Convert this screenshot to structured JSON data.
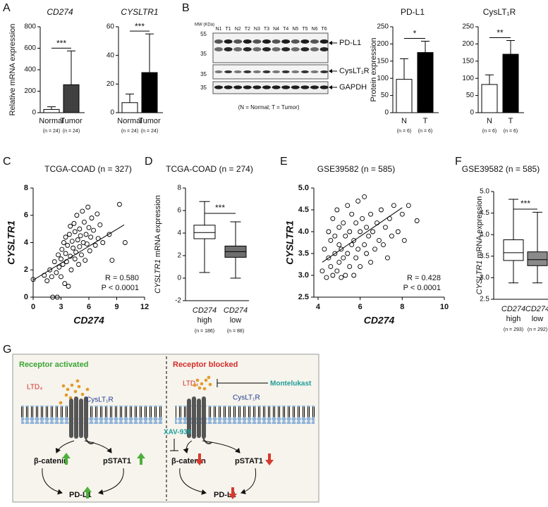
{
  "panel_labels": [
    "A",
    "B",
    "C",
    "D",
    "E",
    "F",
    "G"
  ],
  "blot": {
    "mw_unit": "MW (KDa)",
    "lanes": [
      "N1",
      "T1",
      "N2",
      "T2",
      "N3",
      "T3",
      "N4",
      "T4",
      "N5",
      "T5",
      "N6",
      "T6"
    ],
    "mw_markers": [
      55,
      35,
      35,
      35
    ],
    "proteins": [
      "PD-L1",
      "CysLT₁R",
      "GAPDH"
    ],
    "caption": "(N = Normal; T = Tumor)"
  },
  "chart_data": [
    {
      "type": "bar",
      "title": "CD274",
      "ylabel": "Relative mRNA expression",
      "categories": [
        "Normal",
        "Tumor"
      ],
      "n_labels": [
        "(n = 24)",
        "(n = 24)"
      ],
      "values": [
        30,
        260
      ],
      "errors": [
        25,
        315
      ],
      "colors": [
        "#ffffff",
        "#404040"
      ],
      "ylim": [
        0,
        800
      ],
      "yticks": [
        0,
        200,
        400,
        600,
        800
      ],
      "significance": "***"
    },
    {
      "type": "bar",
      "title": "CYSLTR1",
      "categories": [
        "Normal",
        "Tumor"
      ],
      "n_labels": [
        "(n = 24)",
        "(n = 24)"
      ],
      "values": [
        7,
        28
      ],
      "errors": [
        6,
        27
      ],
      "colors": [
        "#ffffff",
        "#000000"
      ],
      "ylim": [
        0,
        60
      ],
      "yticks": [
        0,
        20,
        40,
        60
      ],
      "significance": "***"
    },
    {
      "type": "bar",
      "title": "PD-L1",
      "ylabel": "Protein expression",
      "categories": [
        "N",
        "T"
      ],
      "n_labels": [
        "(n = 6)",
        "(n = 6)"
      ],
      "values": [
        97,
        175
      ],
      "errors": [
        60,
        33
      ],
      "colors": [
        "#ffffff",
        "#000000"
      ],
      "ylim": [
        0,
        250
      ],
      "yticks": [
        0,
        50,
        100,
        150,
        200,
        250
      ],
      "significance": "*"
    },
    {
      "type": "bar",
      "title": "CysLT₁R",
      "categories": [
        "N",
        "T"
      ],
      "n_labels": [
        "(n = 6)",
        "(n = 6)"
      ],
      "values": [
        82,
        170
      ],
      "errors": [
        28,
        40
      ],
      "colors": [
        "#ffffff",
        "#000000"
      ],
      "ylim": [
        0,
        250
      ],
      "yticks": [
        0,
        50,
        100,
        150,
        200,
        250
      ],
      "significance": "**"
    },
    {
      "type": "scatter",
      "title": "TCGA-COAD (n = 327)",
      "xlabel": "CD274",
      "ylabel": "CYSLTR1",
      "x": [
        0,
        1.2,
        1.5,
        1.8,
        2.0,
        2.1,
        2.3,
        2.5,
        2.6,
        2.7,
        2.8,
        3.0,
        3.0,
        3.1,
        3.2,
        3.3,
        3.4,
        3.5,
        3.5,
        3.6,
        3.7,
        3.8,
        3.9,
        4.0,
        4.0,
        4.1,
        4.2,
        4.3,
        4.4,
        4.5,
        4.5,
        4.6,
        4.7,
        4.8,
        4.9,
        5.0,
        5.0,
        5.1,
        5.2,
        5.3,
        5.4,
        5.5,
        5.6,
        5.7,
        5.8,
        5.9,
        6.0,
        6.1,
        6.2,
        6.3,
        6.5,
        6.7,
        6.9,
        7.0,
        7.2,
        7.5,
        8.2,
        8.5,
        9.3,
        9.9
      ],
      "y": [
        1.3,
        1.6,
        1.2,
        2.0,
        1.5,
        0,
        2.6,
        1.8,
        0,
        3.1,
        2.2,
        2.8,
        1.5,
        3.5,
        2.4,
        4.0,
        1.0,
        3.2,
        4.4,
        2.6,
        3.8,
        0.8,
        4.6,
        3.0,
        5.2,
        2.0,
        4.1,
        3.6,
        5.4,
        2.8,
        4.8,
        3.3,
        6.0,
        4.2,
        2.4,
        3.7,
        5.0,
        4.5,
        3.1,
        6.3,
        4.0,
        5.5,
        2.7,
        4.6,
        3.9,
        6.6,
        5.1,
        3.4,
        4.4,
        5.8,
        4.9,
        3.8,
        6.1,
        4.3,
        5.3,
        4.0,
        4.6,
        2.7,
        6.8,
        4.0
      ],
      "fit": {
        "x": [
          0,
          9.8
        ],
        "y": [
          1.25,
          5.3
        ]
      },
      "annotations": [
        "R = 0.580",
        "P < 0.0001"
      ],
      "xlim": [
        0,
        12
      ],
      "xticks": [
        0,
        3,
        6,
        9,
        12
      ],
      "ylim": [
        0,
        8
      ],
      "yticks": [
        0,
        2,
        4,
        6,
        8
      ]
    },
    {
      "type": "box",
      "title": "TCGA-COAD (n = 274)",
      "ylabel_gene": "CYSLTR1",
      "ylabel": "mRNA expression",
      "group_gene": "CD274",
      "categories": [
        "high",
        "low"
      ],
      "n_labels": [
        "(n = 186)",
        "(n = 88)"
      ],
      "min": [
        0.5,
        0
      ],
      "q1": [
        3.5,
        1.85
      ],
      "median": [
        4.05,
        2.35
      ],
      "q3": [
        4.7,
        2.85
      ],
      "max": [
        6.8,
        5.0
      ],
      "colors": [
        "#ffffff",
        "#6e6e6e"
      ],
      "ylim": [
        -2,
        8
      ],
      "yticks": [
        -2,
        0,
        2,
        4,
        6,
        8
      ],
      "significance": "***"
    },
    {
      "type": "scatter",
      "title": "GSE39582 (n = 585)",
      "xlabel": "CD274",
      "ylabel": "CYSLTR1",
      "x": [
        4.2,
        4.3,
        4.4,
        4.5,
        4.5,
        4.6,
        4.6,
        4.7,
        4.7,
        4.8,
        4.8,
        4.9,
        4.9,
        5.0,
        5.0,
        5.0,
        5.1,
        5.1,
        5.2,
        5.2,
        5.3,
        5.3,
        5.4,
        5.4,
        5.5,
        5.5,
        5.6,
        5.6,
        5.7,
        5.7,
        5.8,
        5.8,
        5.9,
        5.9,
        6.0,
        6.0,
        6.1,
        6.2,
        6.2,
        6.3,
        6.3,
        6.4,
        6.5,
        6.5,
        6.6,
        6.7,
        6.8,
        6.9,
        7.0,
        7.1,
        7.2,
        7.3,
        7.4,
        7.5,
        7.6,
        7.8,
        8.0,
        8.1,
        8.3,
        8.7
      ],
      "y": [
        3.1,
        3.6,
        2.95,
        3.4,
        4.0,
        3.2,
        3.8,
        3.0,
        4.3,
        3.5,
        3.9,
        3.1,
        4.5,
        3.3,
        3.7,
        4.1,
        2.95,
        3.6,
        4.2,
        3.4,
        3.0,
        3.9,
        4.6,
        3.5,
        3.2,
        4.0,
        3.7,
        4.4,
        3.0,
        3.8,
        4.2,
        3.4,
        4.7,
        3.6,
        4.0,
        3.2,
        4.3,
        3.7,
        4.8,
        3.5,
        4.1,
        3.9,
        4.4,
        3.3,
        4.0,
        3.6,
        4.2,
        3.8,
        4.5,
        3.7,
        4.1,
        3.4,
        4.3,
        3.9,
        4.6,
        4.0,
        4.4,
        3.8,
        4.6,
        4.25
      ],
      "fit": {
        "x": [
          4.2,
          8.0
        ],
        "y": [
          3.3,
          4.55
        ]
      },
      "annotations": [
        "R = 0.428",
        "P < 0.0001"
      ],
      "xlim": [
        3.8,
        10
      ],
      "xticks": [
        4,
        6,
        8,
        10
      ],
      "ylim": [
        2.5,
        5
      ],
      "yticks": [
        2.5,
        {
          "value": 3,
          "label": "3.0"
        },
        3.5,
        {
          "value": 4,
          "label": "4.0"
        },
        4.5,
        {
          "value": 5,
          "label": "5.0"
        }
      ]
    },
    {
      "type": "box",
      "title": "GSE39582 (n = 585)",
      "ylabel_gene": "CYSLTR1",
      "ylabel": "mRNA expression",
      "group_gene": "CD274",
      "categories": [
        "high",
        "low"
      ],
      "n_labels": [
        "(n = 293)",
        "(n = 292)"
      ],
      "min": [
        2.88,
        2.88
      ],
      "q1": [
        3.4,
        3.28
      ],
      "median": [
        3.58,
        3.42
      ],
      "q3": [
        3.88,
        3.6
      ],
      "max": [
        4.82,
        4.52
      ],
      "colors": [
        "#ffffff",
        "#8a8a8a"
      ],
      "ylim": [
        2.5,
        5
      ],
      "yticks": [
        2.5,
        {
          "value": 3,
          "label": "3.0"
        },
        3.5,
        {
          "value": 4,
          "label": "4.0"
        },
        4.5,
        {
          "value": 5,
          "label": "5.0"
        }
      ],
      "significance": "***"
    }
  ],
  "diagram": {
    "left": {
      "heading": "Receptor activated",
      "ligand": "LTD₄",
      "receptor": "CysLT₁R",
      "nodes": [
        "β-catenin",
        "pSTAT1",
        "PD-L1"
      ]
    },
    "right": {
      "heading": "Receptor blocked",
      "ligand": "LTD₄",
      "receptor": "CysLT₁R",
      "antagonist": "Montelukast",
      "inhibitor": "XAV-939",
      "nodes": [
        "β-catenin",
        "pSTAT1",
        "PD-L1"
      ]
    }
  }
}
